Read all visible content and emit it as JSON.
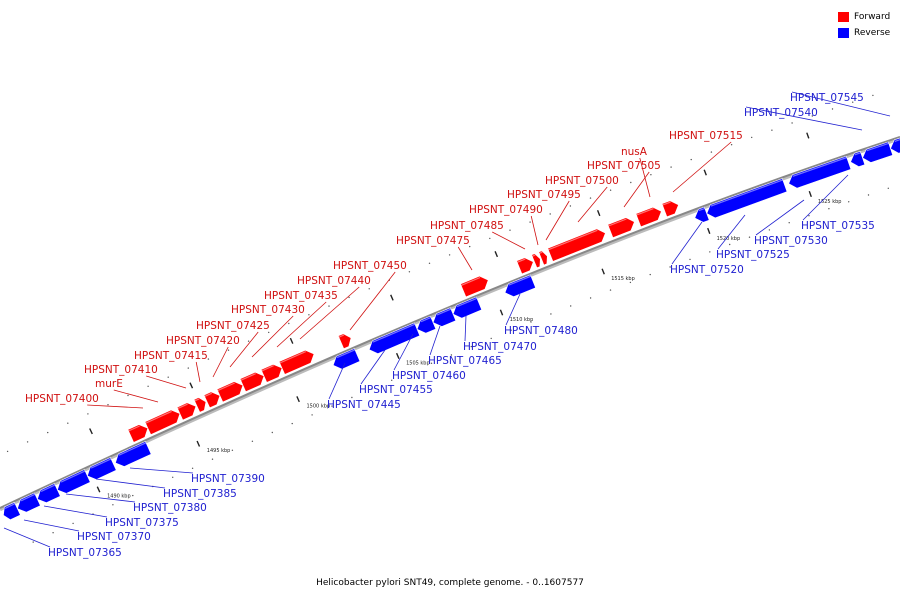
{
  "caption": "Helicobacter pylori SNT49, complete genome. - 0..1607577",
  "legend": [
    {
      "label": "Forward",
      "color": "#ff0000"
    },
    {
      "label": "Reverse",
      "color": "#0000ff"
    }
  ],
  "colors": {
    "forward": "#ff0000",
    "reverse": "#0000ff",
    "forward_line": "#d01010",
    "reverse_line": "#2020d0",
    "backbone": "#888888"
  },
  "ticks": [
    "1490 kbp",
    "1495 kbp",
    "1500 kbp",
    "1505 kbp",
    "1510 kbp",
    "1515 kbp",
    "1520 kbp",
    "1525 kbp"
  ],
  "forward_genes": [
    "HPSNT_07400",
    "murE",
    "HPSNT_07410",
    "HPSNT_07415",
    "HPSNT_07420",
    "HPSNT_07425",
    "HPSNT_07430",
    "HPSNT_07435",
    "HPSNT_07440",
    "HPSNT_07450",
    "HPSNT_07475",
    "HPSNT_07485",
    "HPSNT_07490",
    "HPSNT_07495",
    "HPSNT_07500",
    "HPSNT_07505",
    "nusA",
    "HPSNT_07515"
  ],
  "reverse_genes": [
    "HPSNT_07365",
    "HPSNT_07370",
    "HPSNT_07375",
    "HPSNT_07380",
    "HPSNT_07385",
    "HPSNT_07390",
    "HPSNT_07445",
    "HPSNT_07455",
    "HPSNT_07460",
    "HPSNT_07465",
    "HPSNT_07470",
    "HPSNT_07480",
    "HPSNT_07520",
    "HPSNT_07525",
    "HPSNT_07530",
    "HPSNT_07535",
    "HPSNT_07540",
    "HPSNT_07545"
  ]
}
